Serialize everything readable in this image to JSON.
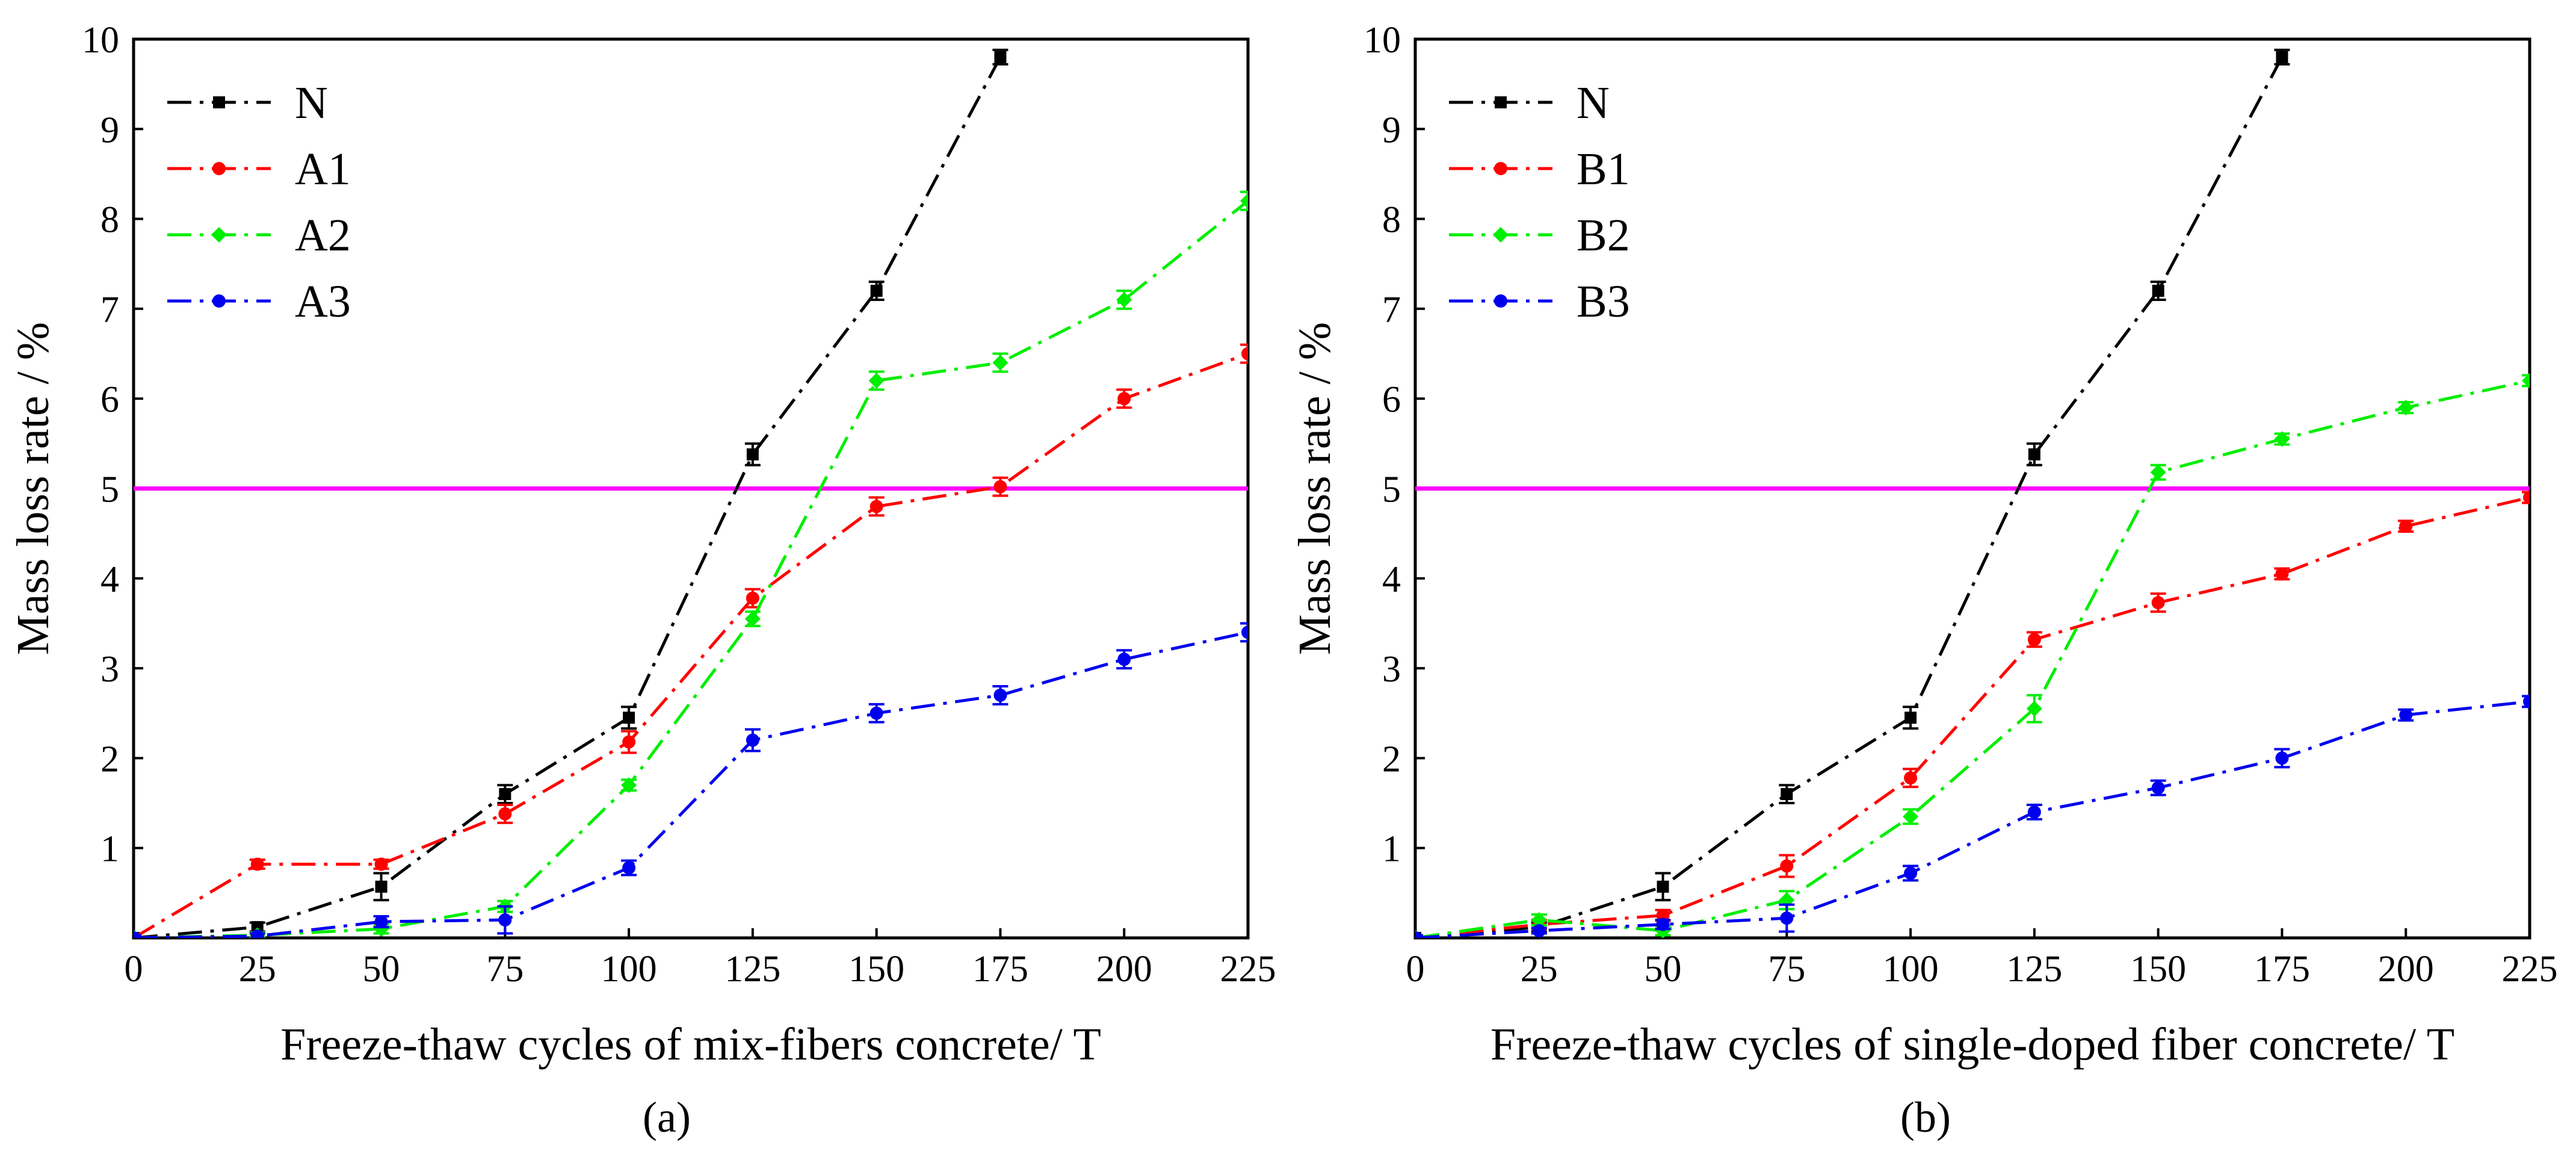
{
  "chart_data": [
    {
      "panel": "(a)",
      "type": "line",
      "xlabel": "Freeze-thaw cycles of mix-fibers concrete/ T",
      "ylabel": "Mass loss rate / %",
      "xlim": [
        0,
        225
      ],
      "ylim": [
        0,
        10
      ],
      "xticks": [
        0,
        25,
        50,
        75,
        100,
        125,
        150,
        175,
        200,
        225
      ],
      "yticks": [
        1,
        2,
        3,
        4,
        5,
        6,
        7,
        8,
        9,
        10
      ],
      "reference_line": {
        "y": 5,
        "color": "#ff00ff"
      },
      "legend_position": "top-left",
      "grid": false,
      "series": [
        {
          "name": "N",
          "color": "#000000",
          "marker": "square",
          "x": [
            0,
            25,
            50,
            75,
            100,
            125,
            150,
            175
          ],
          "y": [
            0,
            0.12,
            0.57,
            1.6,
            2.45,
            5.38,
            7.2,
            9.8
          ],
          "err": [
            0.03,
            0.05,
            0.15,
            0.1,
            0.12,
            0.12,
            0.1,
            0.08
          ]
        },
        {
          "name": "A1",
          "color": "#ff0000",
          "marker": "circle",
          "x": [
            0,
            25,
            50,
            75,
            100,
            125,
            150,
            175,
            200,
            225
          ],
          "y": [
            0,
            0.82,
            0.82,
            1.38,
            2.18,
            3.78,
            4.8,
            5.02,
            6.0,
            6.5
          ],
          "err": [
            0.03,
            0.05,
            0.05,
            0.1,
            0.12,
            0.1,
            0.1,
            0.1,
            0.1,
            0.1
          ]
        },
        {
          "name": "A2",
          "color": "#00ee00",
          "marker": "diamond",
          "x": [
            0,
            25,
            50,
            75,
            100,
            125,
            150,
            175,
            200,
            225
          ],
          "y": [
            0,
            0.03,
            0.1,
            0.35,
            1.7,
            3.55,
            6.2,
            6.4,
            7.1,
            8.2
          ],
          "err": [
            0.03,
            0.03,
            0.05,
            0.06,
            0.06,
            0.08,
            0.1,
            0.1,
            0.1,
            0.1
          ]
        },
        {
          "name": "A3",
          "color": "#0000ee",
          "marker": "circle",
          "x": [
            0,
            25,
            50,
            75,
            100,
            125,
            150,
            175,
            200,
            225
          ],
          "y": [
            0,
            0.02,
            0.18,
            0.2,
            0.78,
            2.2,
            2.5,
            2.7,
            3.1,
            3.4
          ],
          "err": [
            0.03,
            0.03,
            0.06,
            0.15,
            0.08,
            0.12,
            0.1,
            0.1,
            0.1,
            0.1
          ]
        }
      ]
    },
    {
      "panel": "(b)",
      "type": "line",
      "xlabel": "Freeze-thaw cycles of single-doped fiber concrete/ T",
      "ylabel": "Mass loss rate / %",
      "xlim": [
        0,
        225
      ],
      "ylim": [
        0,
        10
      ],
      "xticks": [
        0,
        25,
        50,
        75,
        100,
        125,
        150,
        175,
        200,
        225
      ],
      "yticks": [
        1,
        2,
        3,
        4,
        5,
        6,
        7,
        8,
        9,
        10
      ],
      "reference_line": {
        "y": 5,
        "color": "#ff00ff"
      },
      "legend_position": "top-left",
      "grid": false,
      "series": [
        {
          "name": "N",
          "color": "#000000",
          "marker": "square",
          "x": [
            0,
            25,
            50,
            75,
            100,
            125,
            150,
            175
          ],
          "y": [
            0,
            0.12,
            0.57,
            1.6,
            2.45,
            5.38,
            7.2,
            9.8
          ],
          "err": [
            0.03,
            0.05,
            0.15,
            0.1,
            0.12,
            0.12,
            0.1,
            0.08
          ]
        },
        {
          "name": "B1",
          "color": "#ff0000",
          "marker": "circle",
          "x": [
            0,
            25,
            50,
            75,
            100,
            125,
            150,
            175,
            200,
            225
          ],
          "y": [
            0,
            0.15,
            0.25,
            0.8,
            1.78,
            3.32,
            3.73,
            4.05,
            4.58,
            4.9
          ],
          "err": [
            0.03,
            0.05,
            0.06,
            0.12,
            0.1,
            0.08,
            0.1,
            0.06,
            0.06,
            0.06
          ]
        },
        {
          "name": "B2",
          "color": "#00ee00",
          "marker": "diamond",
          "x": [
            0,
            25,
            50,
            75,
            100,
            125,
            150,
            175,
            200,
            225
          ],
          "y": [
            0,
            0.2,
            0.08,
            0.42,
            1.35,
            2.55,
            5.18,
            5.55,
            5.9,
            6.2
          ],
          "err": [
            0.03,
            0.06,
            0.05,
            0.1,
            0.08,
            0.15,
            0.08,
            0.06,
            0.06,
            0.06
          ]
        },
        {
          "name": "B3",
          "color": "#0000ee",
          "marker": "circle",
          "x": [
            0,
            25,
            50,
            75,
            100,
            125,
            150,
            175,
            200,
            225
          ],
          "y": [
            0,
            0.08,
            0.15,
            0.22,
            0.72,
            1.4,
            1.67,
            2.0,
            2.48,
            2.63
          ],
          "err": [
            0.03,
            0.03,
            0.05,
            0.15,
            0.08,
            0.08,
            0.08,
            0.1,
            0.06,
            0.06
          ]
        }
      ]
    }
  ]
}
